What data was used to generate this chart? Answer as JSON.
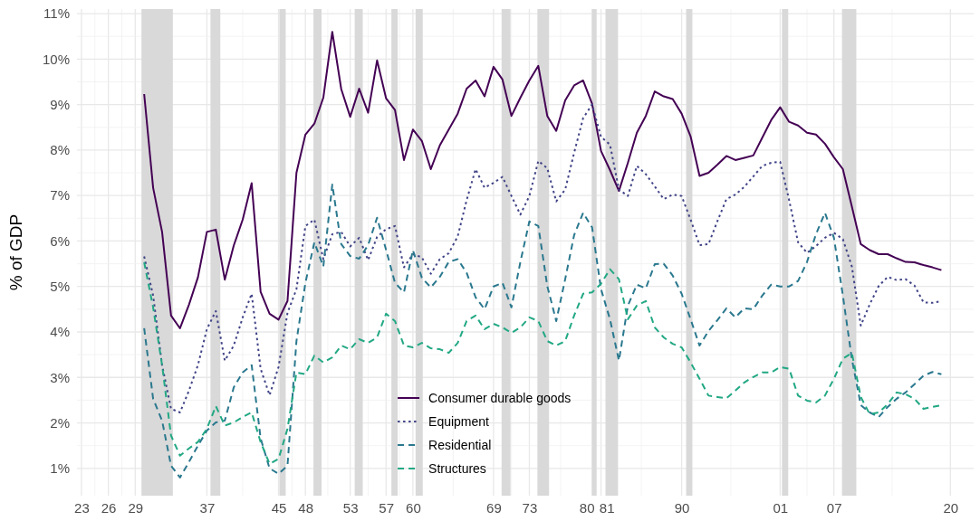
{
  "chart_data": {
    "type": "line",
    "ylabel": "% of GDP",
    "x": [
      1930,
      1931,
      1932,
      1933,
      1934,
      1935,
      1936,
      1937,
      1938,
      1939,
      1940,
      1941,
      1942,
      1943,
      1944,
      1945,
      1946,
      1947,
      1948,
      1949,
      1950,
      1951,
      1952,
      1953,
      1954,
      1955,
      1956,
      1957,
      1958,
      1959,
      1960,
      1961,
      1962,
      1963,
      1964,
      1965,
      1966,
      1967,
      1968,
      1969,
      1970,
      1971,
      1972,
      1973,
      1974,
      1975,
      1976,
      1977,
      1978,
      1979,
      1980,
      1981,
      1982,
      1983,
      1984,
      1985,
      1986,
      1987,
      1988,
      1989,
      1990,
      1991,
      1992,
      1993,
      1994,
      1995,
      1996,
      1997,
      1998,
      1999,
      2000,
      2001,
      2002,
      2003,
      2004,
      2005,
      2006,
      2007,
      2008,
      2009,
      2010,
      2011,
      2012,
      2013,
      2014,
      2015,
      2016,
      2017,
      2018,
      2019
    ],
    "series": [
      {
        "name": "Consumer durable goods",
        "color": "#440154",
        "line_style": "solid",
        "values": [
          9.23,
          7.17,
          6.2,
          4.36,
          4.08,
          4.6,
          5.2,
          6.2,
          6.25,
          5.15,
          5.9,
          6.47,
          7.27,
          4.88,
          4.4,
          4.27,
          4.68,
          7.5,
          8.34,
          8.58,
          9.15,
          10.6,
          9.34,
          8.73,
          9.35,
          8.82,
          9.97,
          9.14,
          8.88,
          7.78,
          8.45,
          8.2,
          7.58,
          8.1,
          8.45,
          8.8,
          9.35,
          9.53,
          9.18,
          9.83,
          9.55,
          8.75,
          9.15,
          9.53,
          9.85,
          8.75,
          8.42,
          9.09,
          9.42,
          9.53,
          9.02,
          7.98,
          7.56,
          7.1,
          7.72,
          8.38,
          8.75,
          9.29,
          9.18,
          9.12,
          8.8,
          8.3,
          7.43,
          7.5,
          7.68,
          7.87,
          7.78,
          7.83,
          7.88,
          8.27,
          8.66,
          8.94,
          8.62,
          8.54,
          8.38,
          8.34,
          8.14,
          7.84,
          7.58,
          6.76,
          5.93,
          5.8,
          5.71,
          5.71,
          5.62,
          5.54,
          5.53,
          5.47,
          5.42,
          5.36
        ]
      },
      {
        "name": "Equipment",
        "color": "#414487",
        "line_style": "dotted",
        "values": [
          5.66,
          4.8,
          3.27,
          2.31,
          2.23,
          2.71,
          3.27,
          4.06,
          4.46,
          3.37,
          3.7,
          4.32,
          4.84,
          3.19,
          2.61,
          3.23,
          4.42,
          4.94,
          6.33,
          6.47,
          5.6,
          6.15,
          6.2,
          5.88,
          6.07,
          5.58,
          6.09,
          6.26,
          6.33,
          5.42,
          5.71,
          5.64,
          5.28,
          5.6,
          5.73,
          6.1,
          6.9,
          7.58,
          7.17,
          7.28,
          7.41,
          6.99,
          6.58,
          6.99,
          7.76,
          7.6,
          6.87,
          7.13,
          7.94,
          8.7,
          9.0,
          8.29,
          8.12,
          7.13,
          6.99,
          7.65,
          7.47,
          7.2,
          6.92,
          7.02,
          6.99,
          6.47,
          5.91,
          5.93,
          6.44,
          6.92,
          7.02,
          7.19,
          7.42,
          7.65,
          7.72,
          7.74,
          6.9,
          5.97,
          5.74,
          5.89,
          6.07,
          6.18,
          6.04,
          5.44,
          4.14,
          4.61,
          5.01,
          5.21,
          5.14,
          5.16,
          5.02,
          4.65,
          4.64,
          4.68
        ]
      },
      {
        "name": "Residential",
        "color": "#2a788e",
        "line_style": "dashed",
        "values": [
          4.08,
          2.53,
          2.05,
          1.06,
          0.8,
          1.14,
          1.5,
          1.83,
          2.01,
          2.05,
          2.78,
          3.11,
          3.27,
          1.66,
          1.0,
          0.88,
          1.06,
          3.8,
          5.08,
          5.97,
          5.44,
          7.24,
          5.93,
          5.67,
          5.61,
          5.91,
          6.51,
          5.81,
          5.08,
          4.87,
          5.8,
          5.19,
          4.98,
          5.21,
          5.54,
          5.6,
          5.3,
          4.76,
          4.5,
          5.0,
          5.08,
          4.54,
          5.54,
          6.43,
          6.33,
          5.01,
          4.24,
          5.16,
          6.13,
          6.62,
          6.3,
          4.94,
          4.28,
          3.37,
          4.58,
          5.04,
          4.96,
          5.49,
          5.5,
          5.24,
          4.84,
          4.28,
          3.7,
          4.02,
          4.26,
          4.52,
          4.32,
          4.52,
          4.5,
          4.8,
          5.04,
          5.0,
          5.0,
          5.12,
          5.54,
          6.15,
          6.62,
          6.07,
          4.8,
          3.41,
          2.39,
          2.23,
          2.13,
          2.35,
          2.53,
          2.67,
          2.85,
          3.04,
          3.12,
          3.07
        ]
      },
      {
        "name": "Structures",
        "color": "#22a884",
        "line_style": "dashed",
        "values": [
          5.53,
          4.54,
          3.27,
          1.72,
          1.28,
          1.44,
          1.58,
          1.87,
          2.37,
          1.94,
          2.01,
          2.13,
          2.23,
          1.58,
          1.1,
          1.21,
          1.87,
          3.11,
          3.07,
          3.48,
          3.33,
          3.44,
          3.7,
          3.62,
          3.84,
          3.76,
          3.88,
          4.4,
          4.24,
          3.7,
          3.66,
          3.76,
          3.64,
          3.62,
          3.54,
          3.76,
          4.24,
          4.36,
          4.06,
          4.18,
          4.1,
          3.98,
          4.1,
          4.32,
          4.24,
          3.8,
          3.7,
          3.8,
          4.36,
          4.84,
          4.87,
          5.06,
          5.38,
          5.16,
          4.28,
          4.58,
          4.68,
          4.1,
          3.88,
          3.74,
          3.66,
          3.33,
          2.97,
          2.6,
          2.57,
          2.54,
          2.71,
          2.89,
          3.01,
          3.11,
          3.11,
          3.23,
          3.19,
          2.6,
          2.49,
          2.45,
          2.6,
          2.97,
          3.41,
          3.54,
          2.57,
          2.19,
          2.23,
          2.41,
          2.67,
          2.63,
          2.53,
          2.31,
          2.35,
          2.39
        ]
      }
    ],
    "xlim": [
      1922.5,
      2022.6
    ],
    "xticks": [
      {
        "value": 1923,
        "label": "23"
      },
      {
        "value": 1926,
        "label": "26"
      },
      {
        "value": 1929,
        "label": "29"
      },
      {
        "value": 1937,
        "label": "37"
      },
      {
        "value": 1945,
        "label": "45"
      },
      {
        "value": 1948,
        "label": "48"
      },
      {
        "value": 1953,
        "label": "53"
      },
      {
        "value": 1957,
        "label": "57"
      },
      {
        "value": 1960,
        "label": "60"
      },
      {
        "value": 1969,
        "label": "69"
      },
      {
        "value": 1973,
        "label": "73"
      },
      {
        "value": 1980,
        "label": "80"
      },
      {
        "value": 1981,
        "label": "81"
      },
      {
        "value": 1990,
        "label": "90"
      },
      {
        "value": 2001,
        "label": "01"
      },
      {
        "value": 2007,
        "label": "07"
      },
      {
        "value": 2020,
        "label": "20"
      }
    ],
    "ylim": [
      0.4,
      11.1
    ],
    "yticks": [
      {
        "value": 1,
        "label": "1%"
      },
      {
        "value": 2,
        "label": "2%"
      },
      {
        "value": 3,
        "label": "3%"
      },
      {
        "value": 4,
        "label": "4%"
      },
      {
        "value": 5,
        "label": "5%"
      },
      {
        "value": 6,
        "label": "6%"
      },
      {
        "value": 7,
        "label": "7%"
      },
      {
        "value": 8,
        "label": "8%"
      },
      {
        "value": 9,
        "label": "9%"
      },
      {
        "value": 10,
        "label": "10%"
      },
      {
        "value": 11,
        "label": "11%"
      }
    ],
    "bands": [
      {
        "axis": "x",
        "from": 1929.7,
        "to": 1933.2,
        "color": "#d9d9d9"
      },
      {
        "axis": "x",
        "from": 1937.4,
        "to": 1938.5,
        "color": "#d9d9d9"
      },
      {
        "axis": "x",
        "from": 1945.1,
        "to": 1945.8,
        "color": "#d9d9d9"
      },
      {
        "axis": "x",
        "from": 1948.9,
        "to": 1949.8,
        "color": "#d9d9d9"
      },
      {
        "axis": "x",
        "from": 1953.5,
        "to": 1954.4,
        "color": "#d9d9d9"
      },
      {
        "axis": "x",
        "from": 1957.6,
        "to": 1958.3,
        "color": "#d9d9d9"
      },
      {
        "axis": "x",
        "from": 1960.3,
        "to": 1961.1,
        "color": "#d9d9d9"
      },
      {
        "axis": "x",
        "from": 1969.9,
        "to": 1970.9,
        "color": "#d9d9d9"
      },
      {
        "axis": "x",
        "from": 1973.9,
        "to": 1975.2,
        "color": "#d9d9d9"
      },
      {
        "axis": "x",
        "from": 1980.0,
        "to": 1980.5,
        "color": "#d9d9d9"
      },
      {
        "axis": "x",
        "from": 1981.5,
        "to": 1982.9,
        "color": "#d9d9d9"
      },
      {
        "axis": "x",
        "from": 1990.5,
        "to": 1991.2,
        "color": "#d9d9d9"
      },
      {
        "axis": "x",
        "from": 2001.2,
        "to": 2001.9,
        "color": "#d9d9d9"
      },
      {
        "axis": "x",
        "from": 2007.9,
        "to": 2009.5,
        "color": "#d9d9d9"
      }
    ],
    "grid": true,
    "legend": "bottom",
    "marker": "none"
  }
}
